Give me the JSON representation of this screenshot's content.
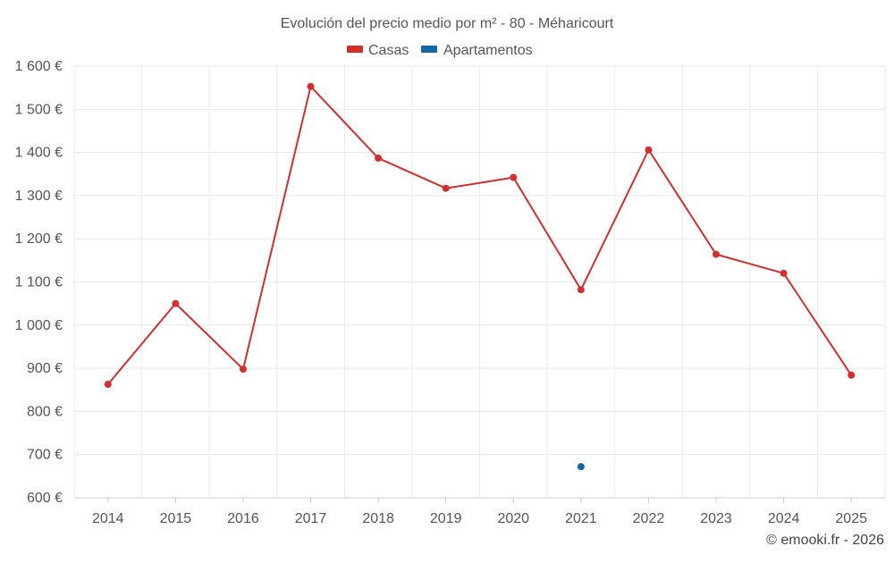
{
  "chart_data": {
    "type": "line",
    "title": "Evolución del precio medio por m² - 80 - Méharicourt",
    "xlabel": "",
    "ylabel": "",
    "categories": [
      "2014",
      "2015",
      "2016",
      "2017",
      "2018",
      "2019",
      "2020",
      "2021",
      "2022",
      "2023",
      "2024",
      "2025"
    ],
    "ylim": [
      600,
      1600
    ],
    "yticks": [
      600,
      700,
      800,
      900,
      1000,
      1100,
      1200,
      1300,
      1400,
      1500,
      1600
    ],
    "ytick_labels": [
      "600 €",
      "700 €",
      "800 €",
      "900 €",
      "1 000 €",
      "1 100 €",
      "1 200 €",
      "1 300 €",
      "1 400 €",
      "1 500 €",
      "1 600 €"
    ],
    "grid": true,
    "legend_position": "top-center",
    "series": [
      {
        "name": "Casas",
        "color": "#d32f2f",
        "values": [
          863,
          1050,
          898,
          1553,
          1387,
          1317,
          1342,
          1082,
          1406,
          1164,
          1120,
          884
        ]
      },
      {
        "name": "Apartamentos",
        "color": "#1565a8",
        "values": [
          null,
          null,
          null,
          null,
          null,
          null,
          null,
          672,
          null,
          null,
          null,
          null
        ]
      }
    ]
  },
  "credit": "© emooki.fr - 2026"
}
